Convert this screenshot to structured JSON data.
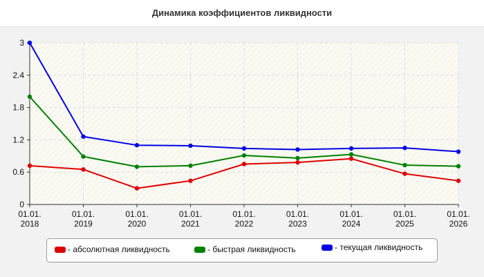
{
  "chart_data": {
    "type": "line",
    "title": "Динамика коэффициентов ликвидности",
    "categories": [
      "01.01.\n2018",
      "01.01.\n2019",
      "01.01.\n2020",
      "01.01.\n2021",
      "01.01.\n2022",
      "01.01.\n2023",
      "01.01.\n2024",
      "01.01.\n2025",
      "01.01.\n2026"
    ],
    "y_ticks": [
      "0",
      "0.6",
      "1.2",
      "1.8",
      "2.4",
      "3"
    ],
    "ylim": [
      0,
      3
    ],
    "grid": true,
    "legend_position": "bottom",
    "series": [
      {
        "name": "- абсолютная ликвидность",
        "color": "#e00000",
        "values": [
          0.72,
          0.65,
          0.3,
          0.44,
          0.75,
          0.78,
          0.85,
          0.57,
          0.44
        ]
      },
      {
        "name": "- быстрая ликвидность",
        "color": "#008000",
        "values": [
          2.0,
          0.89,
          0.7,
          0.72,
          0.91,
          0.86,
          0.93,
          0.73,
          0.71
        ]
      },
      {
        "name": "- текущая ликвидность",
        "color": "#0000e6",
        "values": [
          3.0,
          1.26,
          1.1,
          1.09,
          1.04,
          1.02,
          1.04,
          1.05,
          0.98
        ]
      }
    ]
  }
}
